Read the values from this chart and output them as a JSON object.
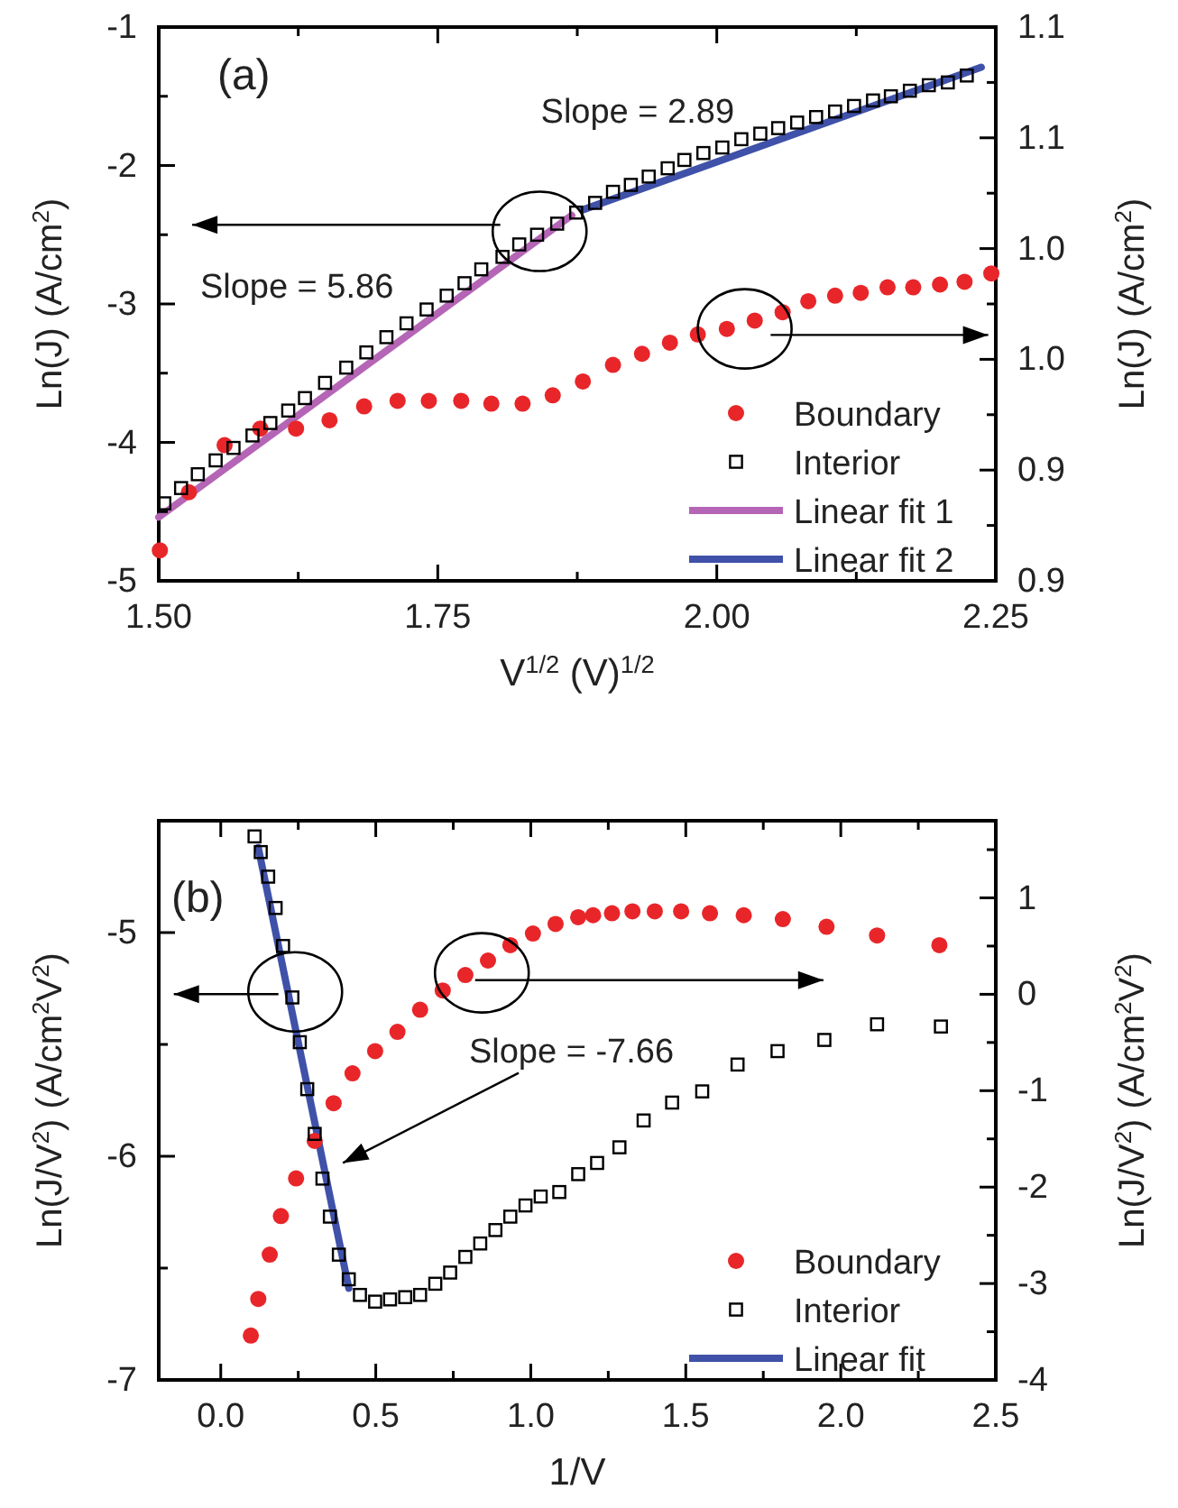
{
  "chart_data": [
    {
      "type": "scatter",
      "xlabel": "V$^{1/2}$ (V)$^{1/2}$",
      "ylabel": "Ln(J) (A/cm$^{2}$)",
      "y2label": "Ln(J) (A/cm$^{2}$)",
      "xlim": [
        1.5,
        2.25
      ],
      "xticks": [
        {
          "value": 1.5,
          "label": "1.50"
        },
        {
          "value": 1.625,
          "label": null
        },
        {
          "value": 1.75,
          "label": "1.75"
        },
        {
          "value": 1.875,
          "label": null
        },
        {
          "value": 2.0,
          "label": "2.00"
        },
        {
          "value": 2.125,
          "label": null
        },
        {
          "value": 2.25,
          "label": "2.25"
        }
      ],
      "ylim": [
        -5,
        -1
      ],
      "yticks": [
        -5,
        {
          "value": -4.5,
          "label": null
        },
        -4,
        {
          "value": -3.5,
          "label": null
        },
        -3,
        {
          "value": -2.5,
          "label": null
        },
        -2,
        {
          "value": -1.5,
          "label": null
        },
        -1
      ],
      "y2lim": [
        0.9,
        1.1
      ],
      "y2ticks": [
        {
          "value": 0.9,
          "label": "0.9"
        },
        {
          "value": 0.92,
          "label": null
        },
        {
          "value": 0.94,
          "label": "0.9"
        },
        {
          "value": 0.96,
          "label": null
        },
        {
          "value": 0.98,
          "label": "1.0"
        },
        {
          "value": 1.0,
          "label": null
        },
        {
          "value": 1.02,
          "label": "1.0"
        },
        {
          "value": 1.04,
          "label": null
        },
        {
          "value": 1.06,
          "label": "1.1"
        },
        {
          "value": 1.08,
          "label": null
        },
        {
          "value": 1.1,
          "label": "1.1"
        }
      ],
      "legend": "bottom right",
      "annotations": [
        "(a)",
        "Slope = 2.89",
        "Slope = 5.86"
      ],
      "series": [
        {
          "name": "Linear fit 1",
          "type": "line",
          "color": "#b565b5",
          "marker": "none",
          "x": [
            1.5,
            1.87
          ],
          "values": [
            -4.54,
            -2.36
          ]
        },
        {
          "name": "Linear fit 2",
          "type": "line",
          "color": "#3f51a8",
          "marker": "none",
          "x": [
            1.88,
            2.237
          ],
          "values": [
            -2.32,
            -1.29
          ]
        },
        {
          "name": "Boundary",
          "type": "scatter",
          "axis": "y2",
          "color": "#e8262a",
          "marker": "circle",
          "x": [
            1.501,
            1.527,
            1.559,
            1.591,
            1.623,
            1.653,
            1.684,
            1.714,
            1.742,
            1.771,
            1.798,
            1.826,
            1.853,
            1.88,
            1.907,
            1.933,
            1.958,
            1.983,
            2.009,
            2.034,
            2.059,
            2.082,
            2.106,
            2.129,
            2.153,
            2.176,
            2.2,
            2.222,
            2.246
          ],
          "values": [
            0.911,
            0.932,
            0.949,
            0.955,
            0.955,
            0.958,
            0.963,
            0.965,
            0.965,
            0.965,
            0.964,
            0.964,
            0.967,
            0.972,
            0.978,
            0.982,
            0.986,
            0.989,
            0.991,
            0.994,
            0.997,
            1.001,
            1.003,
            1.004,
            1.006,
            1.006,
            1.007,
            1.008,
            1.011
          ]
        },
        {
          "name": "Interior",
          "type": "scatter",
          "color": "#000000",
          "marker": "square",
          "x": [
            1.505,
            1.52,
            1.535,
            1.551,
            1.567,
            1.584,
            1.6,
            1.616,
            1.631,
            1.649,
            1.668,
            1.686,
            1.704,
            1.722,
            1.74,
            1.758,
            1.774,
            1.789,
            1.808,
            1.823,
            1.839,
            1.857,
            1.874,
            1.891,
            1.907,
            1.923,
            1.939,
            1.956,
            1.971,
            1.988,
            2.005,
            2.022,
            2.039,
            2.055,
            2.072,
            2.089,
            2.106,
            2.123,
            2.14,
            2.156,
            2.173,
            2.19,
            2.207,
            2.224
          ],
          "values": [
            -4.44,
            -4.33,
            -4.23,
            -4.13,
            -4.04,
            -3.95,
            -3.86,
            -3.77,
            -3.68,
            -3.57,
            -3.46,
            -3.35,
            -3.24,
            -3.14,
            -3.04,
            -2.94,
            -2.85,
            -2.75,
            -2.66,
            -2.57,
            -2.5,
            -2.42,
            -2.34,
            -2.27,
            -2.19,
            -2.14,
            -2.08,
            -2.02,
            -1.96,
            -1.91,
            -1.87,
            -1.81,
            -1.77,
            -1.73,
            -1.69,
            -1.65,
            -1.61,
            -1.57,
            -1.53,
            -1.5,
            -1.46,
            -1.42,
            -1.4,
            -1.35
          ]
        }
      ]
    },
    {
      "type": "scatter",
      "xlabel": "1/V",
      "ylabel": "Ln(J/V$^{2}$) (A/cm$^{2}$V$^{2}$)",
      "y2label": "Ln(J/V$^{2}$) (A/cm$^{2}$V$^{2}$)",
      "xlim": [
        -0.2,
        2.5
      ],
      "xticks": [
        {
          "value": 0,
          "label": "0.0"
        },
        {
          "value": 0.25,
          "label": null
        },
        {
          "value": 0.5,
          "label": "0.5"
        },
        {
          "value": 0.75,
          "label": null
        },
        {
          "value": 1,
          "label": "1.0"
        },
        {
          "value": 1.25,
          "label": null
        },
        {
          "value": 1.5,
          "label": "1.5"
        },
        {
          "value": 1.75,
          "label": null
        },
        {
          "value": 2,
          "label": "2.0"
        },
        {
          "value": 2.25,
          "label": null
        },
        {
          "value": 2.5,
          "label": "2.5"
        }
      ],
      "ylim": [
        -7,
        -4.5
      ],
      "yticks": [
        -7,
        {
          "value": -6.5,
          "label": null
        },
        -6,
        {
          "value": -5.5,
          "label": null
        },
        -5
      ],
      "y2lim": [
        -4,
        1.8
      ],
      "y2ticks": [
        -4,
        {
          "value": -3.5,
          "label": null
        },
        -3,
        {
          "value": -2.5,
          "label": null
        },
        -2,
        {
          "value": -1.5,
          "label": null
        },
        -1,
        {
          "value": -0.5,
          "label": null
        },
        0,
        {
          "value": 0.5,
          "label": null
        },
        1,
        {
          "value": 1.5,
          "label": null
        }
      ],
      "legend": "bottom right",
      "annotations": [
        "(b)",
        "Slope = -7.66"
      ],
      "series": [
        {
          "name": "Boundary",
          "type": "scatter",
          "axis": "y2",
          "color": "#e8262a",
          "marker": "circle",
          "x": [
            0.097,
            0.121,
            0.158,
            0.194,
            0.243,
            0.303,
            0.364,
            0.425,
            0.498,
            0.57,
            0.643,
            0.716,
            0.789,
            0.862,
            0.934,
            1.007,
            1.08,
            1.153,
            1.201,
            1.262,
            1.328,
            1.4,
            1.485,
            1.578,
            1.687,
            1.813,
            1.954,
            2.117,
            2.318
          ],
          "values": [
            -3.54,
            -3.16,
            -2.7,
            -2.3,
            -1.91,
            -1.52,
            -1.13,
            -0.82,
            -0.59,
            -0.39,
            -0.16,
            0.04,
            0.2,
            0.35,
            0.51,
            0.63,
            0.73,
            0.8,
            0.82,
            0.84,
            0.86,
            0.86,
            0.86,
            0.84,
            0.82,
            0.78,
            0.7,
            0.61,
            0.51
          ]
        },
        {
          "name": "Interior",
          "type": "scatter",
          "color": "#000000",
          "marker": "square",
          "x": [
            0.109,
            0.129,
            0.153,
            0.177,
            0.201,
            0.231,
            0.255,
            0.279,
            0.303,
            0.328,
            0.352,
            0.381,
            0.413,
            0.449,
            0.498,
            0.546,
            0.595,
            0.643,
            0.692,
            0.74,
            0.789,
            0.837,
            0.886,
            0.934,
            0.983,
            1.032,
            1.092,
            1.153,
            1.214,
            1.286,
            1.364,
            1.456,
            1.553,
            1.667,
            1.796,
            1.947,
            2.117,
            2.323
          ],
          "values": [
            -4.57,
            -4.64,
            -4.75,
            -4.89,
            -5.06,
            -5.29,
            -5.49,
            -5.7,
            -5.9,
            -6.1,
            -6.27,
            -6.44,
            -6.55,
            -6.62,
            -6.65,
            -6.64,
            -6.63,
            -6.62,
            -6.57,
            -6.52,
            -6.45,
            -6.39,
            -6.33,
            -6.27,
            -6.22,
            -6.18,
            -6.16,
            -6.08,
            -6.03,
            -5.96,
            -5.84,
            -5.76,
            -5.71,
            -5.59,
            -5.53,
            -5.48,
            -5.41,
            -5.42
          ]
        },
        {
          "name": "Linear fit",
          "type": "line",
          "color": "#3f51a8",
          "marker": "none",
          "x": [
            0.121,
            0.413
          ],
          "values": [
            -4.62,
            -6.59
          ]
        }
      ]
    }
  ]
}
